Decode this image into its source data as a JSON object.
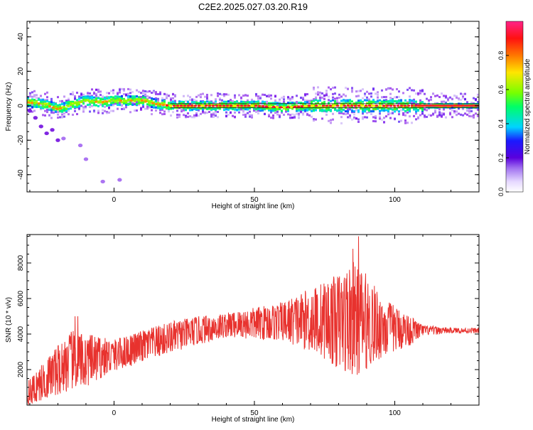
{
  "page": {
    "title": "C2E2.2025.027.03.20.R19"
  },
  "chart_data": [
    {
      "id": "spectrogram",
      "type": "heatmap",
      "xlabel": "Height of straight line (km)",
      "ylabel": "Frequency (Hz)",
      "xlim": [
        -31,
        130
      ],
      "ylim": [
        -50,
        49
      ],
      "xticks": [
        0,
        50,
        100
      ],
      "xtick_labels": [
        "0",
        "50",
        "100"
      ],
      "yticks": [
        -40,
        -20,
        0,
        20,
        40
      ],
      "ytick_labels": [
        "-40",
        "-20",
        "0",
        "20",
        "40"
      ],
      "grid": false,
      "dominant_frequency_track": {
        "x": [
          -31,
          -25,
          -20,
          -15,
          -10,
          -5,
          0,
          5,
          10,
          15,
          20,
          25,
          30,
          40,
          50,
          60,
          70,
          80,
          90,
          100,
          110,
          120,
          130
        ],
        "y": [
          2,
          1,
          -2,
          1,
          3,
          2,
          3,
          3,
          3,
          1,
          0,
          0,
          0,
          0,
          0,
          -1,
          0,
          0,
          0,
          0,
          0,
          0,
          0
        ]
      },
      "scattered_components": {
        "x": [
          -30,
          -28,
          -26,
          -24,
          -22,
          -20,
          -18,
          -12,
          -10,
          -4,
          2
        ],
        "y": [
          -3,
          -7,
          -12,
          -16,
          -14,
          -20,
          -19,
          -23,
          -31,
          -44,
          -43
        ]
      },
      "colorbar": {
        "label": "Normalized spectral amplitude",
        "range": [
          0,
          1
        ],
        "ticks": [
          0.0,
          0.2,
          0.4,
          0.6,
          0.8
        ],
        "tick_labels": [
          "0.0",
          "0.2",
          "0.4",
          "0.6",
          "0.8"
        ],
        "colors": [
          "#ffffff",
          "#c3a8f5",
          "#7a00e6",
          "#1a1aff",
          "#00d4ff",
          "#00ff66",
          "#77ff00",
          "#ffe600",
          "#ff7700",
          "#ff1111",
          "#ff2288"
        ]
      }
    },
    {
      "id": "snr",
      "type": "line",
      "xlabel": "Height of straight line (km)",
      "ylabel": "SNR (10 * v/v)",
      "xlim": [
        -31,
        130
      ],
      "ylim": [
        0,
        9600
      ],
      "xticks": [
        0,
        50,
        100
      ],
      "xtick_labels": [
        "0",
        "50",
        "100"
      ],
      "yticks": [
        2000,
        4000,
        6000,
        8000
      ],
      "ytick_labels": [
        "2000",
        "4000",
        "6000",
        "8000"
      ],
      "grid": false,
      "series": [
        {
          "color": "#e8322e",
          "envelope": {
            "x": [
              -31,
              -20,
              -15,
              -10,
              0,
              10,
              20,
              30,
              40,
              50,
              60,
              70,
              75,
              80,
              85,
              90,
              95,
              100,
              105,
              110,
              120,
              130
            ],
            "mean": [
              600,
              2000,
              2500,
              2500,
              2800,
              3300,
              3800,
              4200,
              4500,
              4600,
              4700,
              4800,
              4800,
              4700,
              4800,
              4700,
              4400,
              4300,
              4200,
              4200,
              4200,
              4200
            ],
            "amplitude": [
              700,
              1400,
              1700,
              1500,
              900,
              900,
              900,
              800,
              700,
              900,
              1100,
              1800,
              2200,
              2700,
              3300,
              2700,
              1800,
              1300,
              900,
              300,
              150,
              150
            ]
          },
          "peaks": {
            "x": [
              -14,
              -13,
              87,
              85
            ],
            "y": [
              5000,
              5000,
              9500,
              8800
            ]
          }
        }
      ]
    }
  ]
}
